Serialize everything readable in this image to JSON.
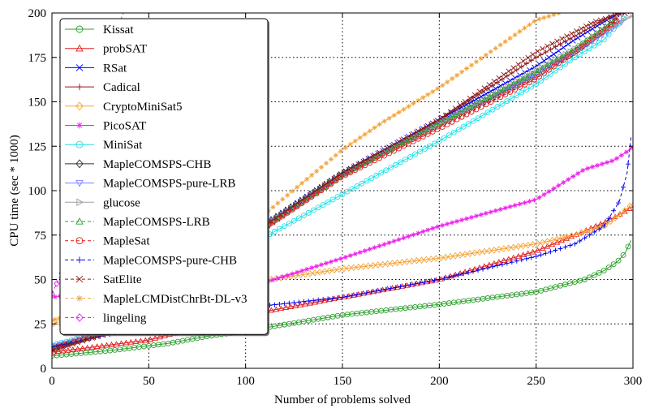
{
  "chart_data": {
    "type": "line",
    "xlabel": "Number of problems solved",
    "ylabel": "CPU time (sec * 1000)",
    "xlim": [
      0,
      300
    ],
    "ylim": [
      0,
      200
    ],
    "xticks": [
      "0",
      "50",
      "100",
      "150",
      "200",
      "250",
      "300"
    ],
    "yticks": [
      "0",
      "25",
      "50",
      "75",
      "100",
      "125",
      "150",
      "175",
      "200"
    ],
    "grid": true,
    "grid_style": "dotted",
    "legend_position": "top-left",
    "series": [
      {
        "name": "Kissat",
        "color": "#2ca02c",
        "marker": "circle",
        "dashed": false,
        "x": [
          0,
          30,
          60,
          80,
          100,
          150,
          200,
          250,
          275,
          285,
          292,
          296,
          299
        ],
        "y": [
          7,
          10,
          14,
          18,
          21,
          30,
          36,
          43,
          50,
          55,
          60,
          65,
          72
        ]
      },
      {
        "name": "probSAT",
        "color": "#e31a1c",
        "marker": "triangle-up",
        "dashed": false,
        "x": [
          0,
          50,
          100,
          150,
          200,
          250,
          270,
          285,
          292,
          297,
          300
        ],
        "y": [
          9,
          16,
          30,
          40,
          50,
          66,
          75,
          82,
          86,
          89,
          91
        ]
      },
      {
        "name": "RSat",
        "color": "#0000ee",
        "marker": "x",
        "dashed": false,
        "x": [
          0,
          50,
          100,
          150,
          200,
          250,
          270,
          285,
          293,
          297,
          300
        ],
        "y": [
          12,
          28,
          74,
          110,
          140,
          170,
          185,
          195,
          200,
          201,
          202
        ]
      },
      {
        "name": "Cadical",
        "color": "#8b1a1a",
        "marker": "plus",
        "dashed": false,
        "x": [
          0,
          50,
          100,
          150,
          200,
          250,
          275,
          288,
          300
        ],
        "y": [
          11,
          27,
          71,
          108,
          140,
          175,
          190,
          198,
          203
        ]
      },
      {
        "name": "CryptoMiniSat5",
        "color": "#f4a43a",
        "marker": "diamond",
        "dashed": false,
        "x": [
          0,
          50,
          100,
          150,
          200,
          250,
          270,
          285,
          295,
          300
        ],
        "y": [
          25,
          40,
          48,
          56,
          62,
          70,
          75,
          80,
          88,
          93
        ]
      },
      {
        "name": "PicoSAT",
        "color": "#ee22ee",
        "marker": "star",
        "dashed": false,
        "x": [
          0,
          20,
          50,
          100,
          150,
          200,
          250,
          275,
          290,
          297,
          300
        ],
        "y": [
          40,
          43,
          44,
          45,
          62,
          80,
          95,
          112,
          117,
          122,
          125
        ]
      },
      {
        "name": "MiniSat",
        "color": "#22e0e8",
        "marker": "circle",
        "dashed": false,
        "x": [
          0,
          50,
          100,
          150,
          200,
          250,
          270,
          285,
          296
        ],
        "y": [
          13,
          27,
          68,
          98,
          128,
          160,
          175,
          185,
          198
        ]
      },
      {
        "name": "MapleCOMSPS-CHB",
        "color": "#303030",
        "marker": "diamond",
        "dashed": false,
        "x": [
          0,
          50,
          100,
          150,
          200,
          250,
          270,
          285,
          292
        ],
        "y": [
          11,
          28,
          74,
          110,
          137,
          165,
          178,
          190,
          197
        ]
      },
      {
        "name": "MapleCOMSPS-pure-LRB",
        "color": "#8080ff",
        "marker": "triangle-down",
        "dashed": false,
        "x": [
          0,
          50,
          100,
          150,
          200,
          250,
          270,
          285,
          296
        ],
        "y": [
          12,
          28,
          73,
          109,
          138,
          165,
          178,
          188,
          196
        ]
      },
      {
        "name": "glucose",
        "color": "#a0a0a0",
        "marker": "triangle-right",
        "dashed": false,
        "x": [
          0,
          50,
          100,
          150,
          200,
          250,
          270,
          285,
          300
        ],
        "y": [
          12,
          27,
          72,
          108,
          137,
          168,
          180,
          190,
          199
        ]
      },
      {
        "name": "MapleCOMSPS-LRB",
        "color": "#2ca02c",
        "marker": "triangle-up",
        "dashed": true,
        "x": [
          0,
          50,
          100,
          150,
          200,
          250,
          270,
          285,
          290
        ],
        "y": [
          11,
          27,
          73,
          109,
          138,
          167,
          180,
          192,
          196
        ]
      },
      {
        "name": "MapleSat",
        "color": "#e31a1c",
        "marker": "circle",
        "dashed": true,
        "x": [
          0,
          50,
          100,
          150,
          200,
          250,
          270,
          285,
          292
        ],
        "y": [
          11,
          27,
          72,
          108,
          135,
          163,
          178,
          190,
          196
        ]
      },
      {
        "name": "MapleCOMSPS-pure-CHB",
        "color": "#0000ee",
        "marker": "plus",
        "dashed": true,
        "x": [
          0,
          50,
          100,
          150,
          200,
          250,
          270,
          285,
          293,
          297,
          299
        ],
        "y": [
          12,
          24,
          34,
          40,
          50,
          63,
          70,
          80,
          94,
          110,
          130
        ]
      },
      {
        "name": "SatElite",
        "color": "#8b1a1a",
        "marker": "x",
        "dashed": true,
        "x": [
          0,
          50,
          100,
          150,
          200,
          250,
          280,
          296,
          300
        ],
        "y": [
          10,
          27,
          73,
          110,
          140,
          178,
          195,
          200,
          204
        ]
      },
      {
        "name": "MapleLCMDistChrBt-DL-v3",
        "color": "#f4a43a",
        "marker": "star",
        "dashed": true,
        "x": [
          0,
          50,
          100,
          150,
          170,
          200,
          250,
          262
        ],
        "y": [
          27,
          45,
          78,
          123,
          138,
          158,
          196,
          200
        ]
      },
      {
        "name": "lingeling",
        "color": "#ee22ee",
        "marker": "diamond",
        "dashed": true,
        "x": [
          0,
          10,
          20,
          30,
          35,
          37
        ],
        "y": [
          42,
          65,
          100,
          160,
          195,
          200
        ]
      }
    ]
  }
}
